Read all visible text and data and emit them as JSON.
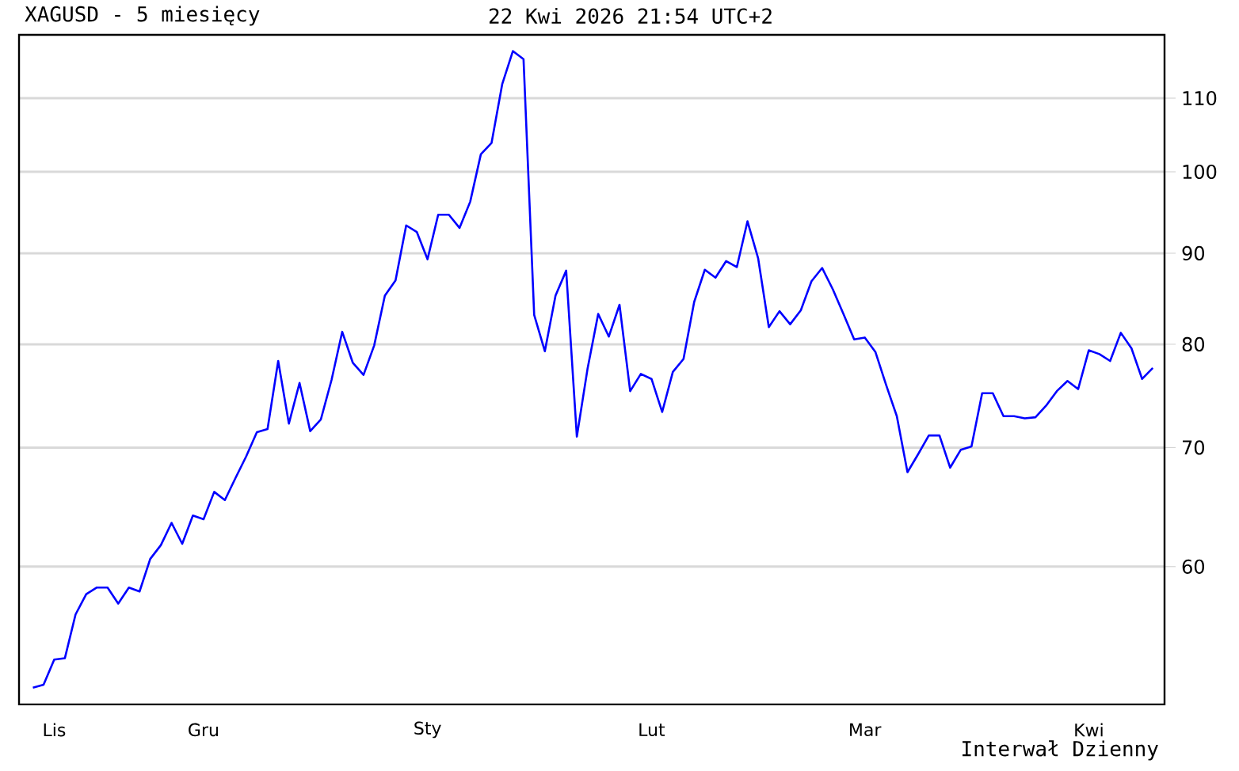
{
  "chart_data": {
    "type": "line",
    "title": "XAGUSD - 5 miesięcy",
    "subtitle": "22 Kwi 2026 21:54 UTC+2",
    "annotations": [
      "Interwał Dzienny"
    ],
    "categories": [
      null,
      null,
      "Lis",
      null,
      null,
      null,
      null,
      null,
      null,
      null,
      null,
      null,
      null,
      null,
      null,
      null,
      "Gru",
      null,
      null,
      null,
      null,
      null,
      null,
      null,
      null,
      null,
      null,
      null,
      null,
      null,
      null,
      null,
      null,
      null,
      null,
      null,
      null,
      "Sty",
      null,
      null,
      null,
      null,
      null,
      null,
      null,
      null,
      null,
      null,
      null,
      null,
      null,
      null,
      null,
      null,
      null,
      null,
      null,
      null,
      "Lut",
      null,
      null,
      null,
      null,
      null,
      null,
      null,
      null,
      null,
      null,
      null,
      null,
      null,
      null,
      null,
      null,
      null,
      null,
      null,
      "Mar",
      null,
      null,
      null,
      null,
      null,
      null,
      null,
      null,
      null,
      null,
      null,
      null,
      null,
      null,
      null,
      null,
      null,
      null,
      null,
      null,
      "Kwi",
      null,
      null,
      null,
      null,
      null,
      null
    ],
    "values": [
      51.3,
      51.5,
      53.2,
      53.3,
      56.4,
      57.9,
      58.4,
      58.4,
      57.2,
      58.4,
      58.1,
      60.6,
      61.7,
      63.5,
      61.8,
      64.1,
      63.8,
      66.1,
      65.4,
      67.3,
      69.2,
      71.4,
      71.7,
      78.3,
      72.2,
      76.1,
      71.5,
      72.6,
      76.4,
      81.3,
      78.1,
      76.9,
      79.9,
      85.2,
      86.9,
      93.3,
      92.5,
      89.3,
      94.6,
      94.6,
      93.0,
      96.2,
      102.3,
      103.8,
      112.0,
      116.9,
      115.7,
      83.1,
      79.3,
      85.2,
      88.0,
      71.0,
      77.5,
      83.2,
      80.8,
      84.2,
      75.3,
      77.0,
      76.5,
      73.3,
      77.2,
      78.5,
      84.5,
      88.1,
      87.2,
      89.1,
      88.4,
      93.8,
      89.4,
      81.8,
      83.5,
      82.1,
      83.6,
      86.8,
      88.3,
      85.9,
      83.2,
      80.5,
      80.7,
      79.2,
      75.9,
      72.9,
      67.8,
      69.4,
      71.1,
      71.1,
      68.2,
      69.8,
      70.1,
      75.1,
      75.1,
      72.9,
      72.9,
      72.7,
      72.8,
      73.9,
      75.3,
      76.3,
      75.5,
      79.4,
      79.0,
      78.3,
      81.2,
      79.6,
      76.5,
      77.6
    ],
    "color": "#0000ff",
    "ylim": [
      50.2,
      119.4
    ],
    "yticks": [
      60,
      70,
      80,
      90,
      100,
      110
    ],
    "log": true,
    "grid": "y"
  }
}
